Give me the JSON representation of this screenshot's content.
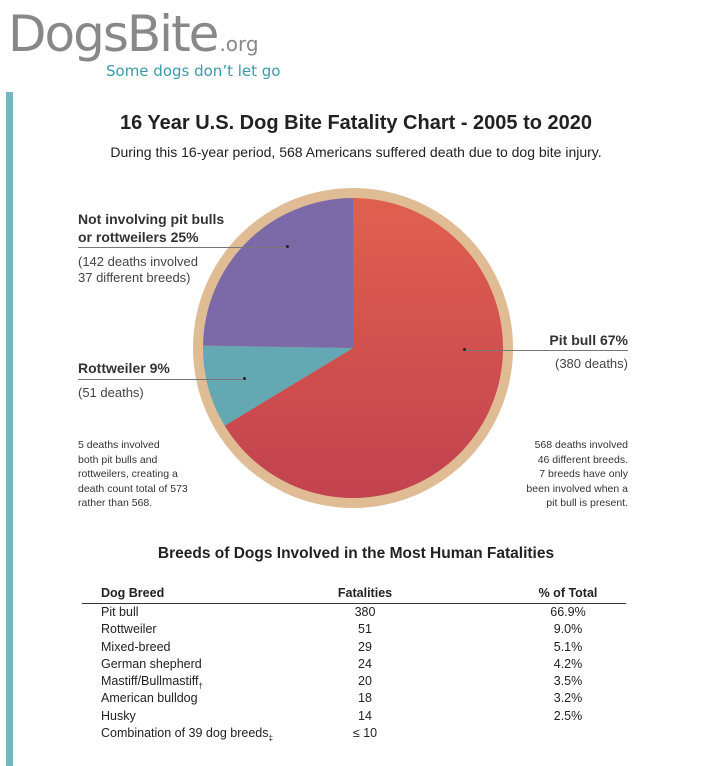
{
  "logo": {
    "name": "DogsBite",
    "suffix": ".org",
    "tagline": "Some dogs don’t let go"
  },
  "header": {
    "title": "16 Year U.S. Dog Bite Fatality Chart - 2005 to 2020",
    "subtitle": "During this 16-year period, 568 Americans suffered death due to dog bite injury."
  },
  "colors": {
    "pit_bull": "#c9464e",
    "other": "#7b69a8",
    "rottweiler": "#64a8b4",
    "ring": "#e0bc94",
    "accent": "#3a9aab"
  },
  "chart_data": [
    {
      "type": "pie",
      "title": "16 Year U.S. Dog Bite Fatality Chart - 2005 to 2020",
      "slices": [
        {
          "name": "Pit bull",
          "percent": 67,
          "label": "Pit bull 67%",
          "detail": "(380 deaths)",
          "color": "#c9464e"
        },
        {
          "name": "Rottweiler",
          "percent": 9,
          "label": "Rottweiler 9%",
          "detail": "(51 deaths)",
          "color": "#64a8b4"
        },
        {
          "name": "Not involving pit bulls or rottweilers",
          "percent": 25,
          "label_line1": "Not involving pit bulls",
          "label_line2": "or rottweilers 25%",
          "detail_line1": "(142 deaths involved",
          "detail_line2": "37 different breeds)",
          "color": "#7b69a8"
        }
      ],
      "notes": {
        "left": [
          "5 deaths involved",
          "both pit bulls and",
          "rottweilers, creating a",
          "death count total of 573",
          "rather than 568."
        ],
        "right": [
          "568 deaths involved",
          "46 different breeds.",
          "7 breeds have only",
          "been involved when a",
          "pit bull is present."
        ]
      }
    },
    {
      "type": "table",
      "title": "Breeds of Dogs Involved in the Most Human Fatalities",
      "columns": [
        "Dog Breed",
        "Fatalities",
        "% of Total"
      ],
      "rows": [
        {
          "breed": "Pit bull",
          "mark": "",
          "fatalities": "380",
          "percent": "66.9%"
        },
        {
          "breed": "Rottweiler",
          "mark": "",
          "fatalities": "51",
          "percent": "9.0%"
        },
        {
          "breed": "Mixed-breed",
          "mark": "",
          "fatalities": "29",
          "percent": "5.1%"
        },
        {
          "breed": "German shepherd",
          "mark": "",
          "fatalities": "24",
          "percent": "4.2%"
        },
        {
          "breed": "Mastiff/Bullmastiff",
          "mark": "†",
          "fatalities": "20",
          "percent": "3.5%"
        },
        {
          "breed": "American bulldog",
          "mark": "",
          "fatalities": "18",
          "percent": "3.2%"
        },
        {
          "breed": "Husky",
          "mark": "",
          "fatalities": "14",
          "percent": "2.5%"
        },
        {
          "breed": "Combination of 39 dog breeds",
          "mark": "‡",
          "fatalities": "≤ 10",
          "percent": ""
        }
      ]
    }
  ]
}
